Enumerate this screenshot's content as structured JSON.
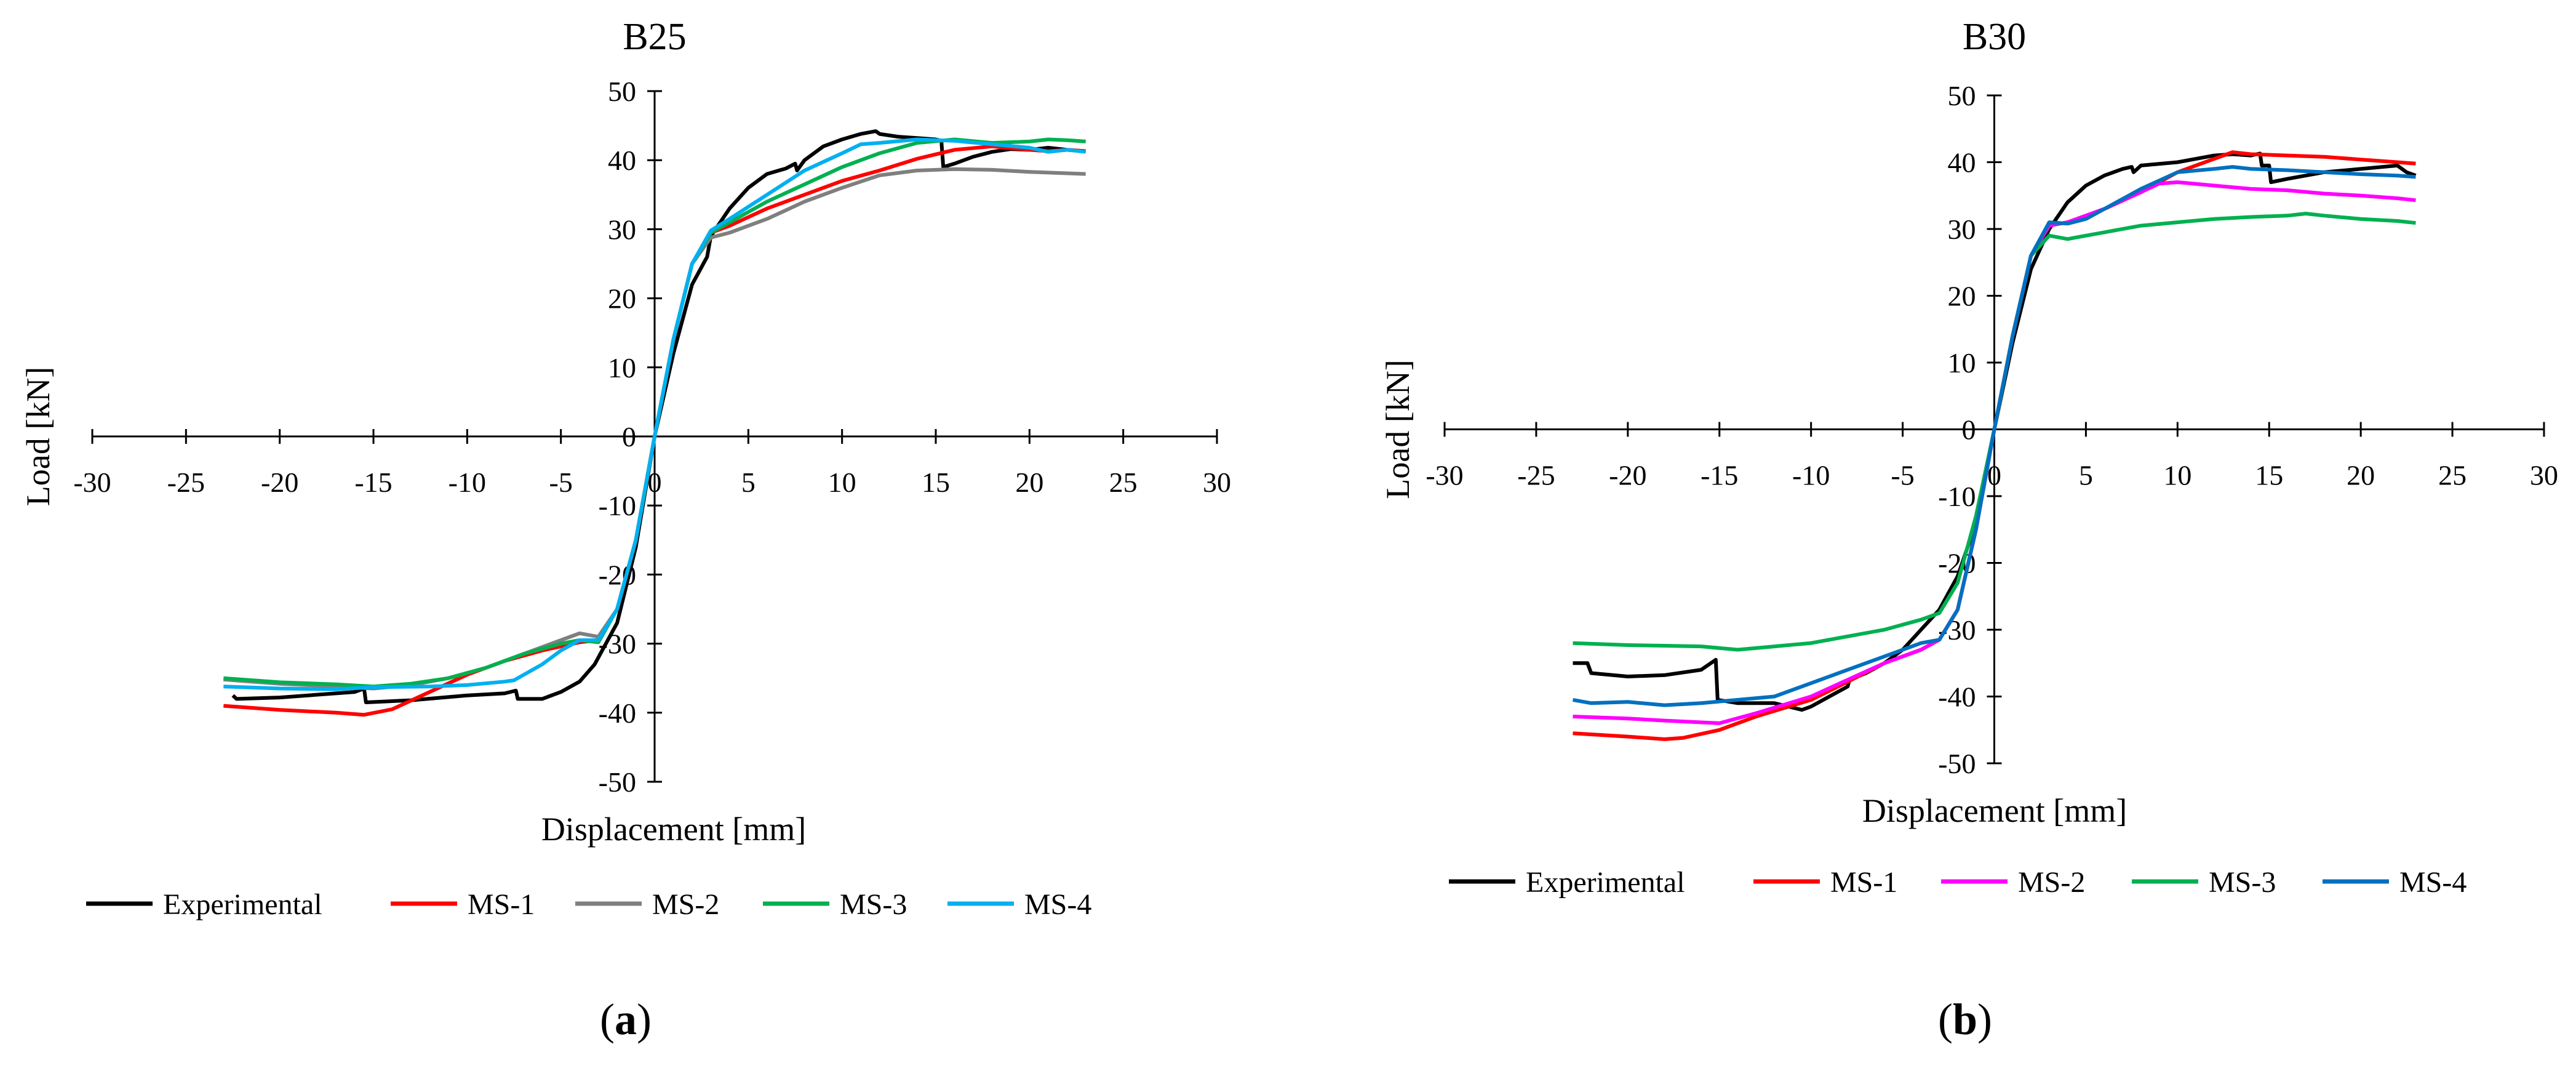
{
  "panels": [
    {
      "caption_letter": "a"
    },
    {
      "caption_letter": "b"
    }
  ],
  "chart_data": [
    {
      "type": "line",
      "title": "B25",
      "xlabel": "Displacement [mm]",
      "ylabel": "Load [kN]",
      "xlim": [
        -30,
        30
      ],
      "ylim": [
        -50,
        50
      ],
      "xticks": [
        -30,
        -25,
        -20,
        -15,
        -10,
        -5,
        0,
        5,
        10,
        15,
        20,
        25,
        30
      ],
      "yticks": [
        -50,
        -40,
        -30,
        -20,
        -10,
        0,
        10,
        20,
        30,
        40,
        50
      ],
      "legend_position": "bottom",
      "series": [
        {
          "name": "Experimental",
          "color": "#000000",
          "x": [
            -22.5,
            -22.3,
            -20,
            -16,
            -15.5,
            -15.4,
            -13,
            -10,
            -8,
            -7.4,
            -7.3,
            -6,
            -5,
            -4,
            -3.2,
            -2,
            -1,
            0,
            1,
            2,
            2.8,
            3,
            4,
            5,
            6,
            7,
            7.5,
            7.6,
            8,
            9,
            10,
            11,
            11.8,
            12,
            13,
            14,
            15,
            15.3,
            15.4,
            16,
            17,
            18,
            19,
            20,
            21,
            22,
            23
          ],
          "y": [
            -37.5,
            -38,
            -37.8,
            -37,
            -36.5,
            -38.5,
            -38.2,
            -37.5,
            -37.2,
            -36.8,
            -38,
            -38,
            -37,
            -35.5,
            -33,
            -27,
            -16,
            0,
            12,
            22,
            26,
            29,
            33,
            36,
            38,
            38.8,
            39.5,
            38.5,
            40,
            42,
            43,
            43.8,
            44.2,
            43.8,
            43.4,
            43.2,
            43,
            42.8,
            39,
            39.5,
            40.5,
            41.2,
            41.6,
            41.5,
            41.8,
            41.5,
            41.3
          ]
        },
        {
          "name": "MS-1",
          "color": "#ff0000",
          "x": [
            -23,
            -20,
            -17,
            -15.5,
            -14,
            -12,
            -10,
            -8,
            -6,
            -4,
            -3,
            -2,
            -1,
            0,
            1,
            2,
            3,
            4,
            6,
            8,
            10,
            12,
            14,
            16,
            18,
            20,
            21,
            22,
            23
          ],
          "y": [
            -39,
            -39.6,
            -40,
            -40.3,
            -39.5,
            -37,
            -34.5,
            -32.5,
            -31,
            -29.8,
            -29.5,
            -25,
            -15,
            0,
            14,
            25,
            29.5,
            30.5,
            33,
            35,
            37,
            38.5,
            40.2,
            41.5,
            42,
            41.5,
            41.3,
            41.5,
            41.3
          ]
        },
        {
          "name": "MS-2",
          "color": "#7f7f7f",
          "x": [
            -23,
            -20,
            -17,
            -15,
            -13,
            -11,
            -9,
            -7,
            -5,
            -4,
            -3,
            -2,
            -1,
            0,
            1,
            2,
            3,
            4,
            6,
            8,
            10,
            12,
            14,
            16,
            18,
            20,
            22,
            23
          ],
          "y": [
            -35.2,
            -35.8,
            -36.2,
            -36.5,
            -36,
            -35,
            -33.5,
            -31.5,
            -29.5,
            -28.5,
            -29,
            -25,
            -15,
            0,
            14,
            25,
            28.8,
            29.5,
            31.5,
            34,
            36,
            37.8,
            38.5,
            38.7,
            38.6,
            38.3,
            38.1,
            38
          ]
        },
        {
          "name": "MS-3",
          "color": "#00b050",
          "x": [
            -23,
            -20,
            -17,
            -15,
            -13,
            -11,
            -9,
            -7,
            -5,
            -4,
            -3,
            -2,
            -1,
            0,
            1,
            2,
            3,
            4,
            6,
            8,
            10,
            12,
            14,
            16,
            18,
            20,
            21,
            22,
            23
          ],
          "y": [
            -35,
            -35.6,
            -35.9,
            -36.2,
            -35.8,
            -35,
            -33.5,
            -31.5,
            -30,
            -29.5,
            -29.8,
            -25,
            -15,
            0,
            14,
            25,
            29.5,
            31,
            34,
            36.5,
            39,
            41,
            42.5,
            43,
            42.5,
            42.7,
            43,
            42.9,
            42.7
          ]
        },
        {
          "name": "MS-4",
          "color": "#00b0f0",
          "x": [
            -23,
            -20,
            -17,
            -15,
            -12,
            -10,
            -8,
            -7.5,
            -6,
            -5,
            -4,
            -3,
            -2,
            -1,
            0,
            1,
            2,
            3,
            4,
            6,
            8,
            10,
            11,
            12,
            14,
            16,
            18,
            20,
            21,
            22,
            23
          ],
          "y": [
            -36.2,
            -36.5,
            -36.6,
            -36.3,
            -36.2,
            -36,
            -35.5,
            -35.3,
            -33,
            -31,
            -29.5,
            -29.5,
            -25,
            -15,
            0,
            14,
            25,
            29.8,
            31.5,
            35,
            38.5,
            41,
            42.3,
            42.5,
            43,
            42.8,
            42.3,
            41.8,
            41.2,
            41.5,
            41.2
          ]
        }
      ]
    },
    {
      "type": "line",
      "title": "B30",
      "xlabel": "Displacement [mm]",
      "ylabel": "Load [kN]",
      "xlim": [
        -30,
        30
      ],
      "ylim": [
        -50,
        50
      ],
      "xticks": [
        -30,
        -25,
        -20,
        -15,
        -10,
        -5,
        0,
        5,
        10,
        15,
        20,
        25,
        30
      ],
      "yticks": [
        -50,
        -40,
        -30,
        -20,
        -10,
        0,
        10,
        20,
        30,
        40,
        50
      ],
      "legend_position": "bottom",
      "series": [
        {
          "name": "Experimental",
          "color": "#000000",
          "x": [
            -23,
            -22.2,
            -22,
            -20,
            -18,
            -16,
            -15.2,
            -15.1,
            -14,
            -12,
            -10.5,
            -10,
            -9,
            -8,
            -7.9,
            -7,
            -6,
            -5,
            -4,
            -3,
            -2,
            -1,
            0,
            1,
            2,
            3,
            4,
            5,
            6,
            7,
            7.5,
            7.6,
            8,
            10,
            12,
            13,
            14,
            14.5,
            14.6,
            15,
            15.1,
            16,
            18,
            20,
            22,
            22.5,
            23
          ],
          "y": [
            -35,
            -35,
            -36.5,
            -37,
            -36.8,
            -36,
            -34.5,
            -40.5,
            -41,
            -41,
            -42,
            -41.5,
            -40,
            -38.5,
            -37.5,
            -36.5,
            -35,
            -33,
            -30,
            -27,
            -22,
            -14,
            0,
            13,
            24,
            30,
            34,
            36.5,
            38,
            39,
            39.3,
            38.5,
            39.5,
            40,
            41,
            41.2,
            41,
            41.3,
            39.5,
            39.5,
            37,
            37.5,
            38.5,
            39,
            39.5,
            38.5,
            38
          ]
        },
        {
          "name": "MS-1",
          "color": "#ff0000",
          "x": [
            -23,
            -20,
            -18,
            -17,
            -15,
            -13,
            -10,
            -8,
            -6,
            -4,
            -3,
            -2,
            -1,
            0,
            1,
            2,
            3,
            4,
            5,
            6,
            8,
            10,
            12,
            13,
            14,
            16,
            18,
            20,
            22,
            23
          ],
          "y": [
            -45.5,
            -46,
            -46.4,
            -46.2,
            -45,
            -43,
            -40.5,
            -37.8,
            -35,
            -33,
            -31.5,
            -27,
            -15,
            0,
            14,
            26,
            30.5,
            31,
            32,
            33,
            35.5,
            38.5,
            40.5,
            41.5,
            41.2,
            41,
            40.8,
            40.4,
            40,
            39.8
          ]
        },
        {
          "name": "MS-2",
          "color": "#ff00ff",
          "x": [
            -23,
            -20,
            -18,
            -15,
            -13,
            -10,
            -8,
            -6,
            -4,
            -3,
            -2,
            -1,
            0,
            1,
            2,
            3,
            4,
            5,
            6,
            8,
            9,
            10,
            12,
            14,
            16,
            18,
            20,
            22,
            23
          ],
          "y": [
            -43,
            -43.3,
            -43.6,
            -44,
            -42.5,
            -40,
            -37.5,
            -35,
            -33,
            -31.5,
            -27,
            -15,
            0,
            14,
            26,
            30.5,
            31,
            32,
            33,
            35.5,
            36.8,
            37,
            36.5,
            36,
            35.8,
            35.3,
            35,
            34.6,
            34.3
          ]
        },
        {
          "name": "MS-3",
          "color": "#00b050",
          "x": [
            -23,
            -20,
            -18,
            -16,
            -14,
            -12,
            -10,
            -8,
            -6,
            -4,
            -3,
            -2,
            -1,
            0,
            1,
            2,
            3,
            4,
            5,
            6,
            8,
            10,
            12,
            14,
            16,
            17,
            18,
            20,
            22,
            23
          ],
          "y": [
            -32,
            -32.3,
            -32.4,
            -32.5,
            -33,
            -32.5,
            -32,
            -31,
            -30,
            -28.5,
            -27.5,
            -23,
            -13,
            0,
            14,
            26,
            29,
            28.5,
            29,
            29.5,
            30.5,
            31,
            31.5,
            31.8,
            32,
            32.3,
            32,
            31.5,
            31.2,
            30.9
          ]
        },
        {
          "name": "MS-4",
          "color": "#0070c0",
          "x": [
            -23,
            -22,
            -20,
            -18,
            -16,
            -14,
            -12,
            -10,
            -8,
            -6,
            -4,
            -3,
            -2,
            -1,
            0,
            1,
            2,
            3,
            4,
            5,
            6,
            8,
            10,
            12,
            13,
            14,
            16,
            18,
            20,
            22,
            23
          ],
          "y": [
            -40.5,
            -41,
            -40.8,
            -41.3,
            -41,
            -40.5,
            -40,
            -38,
            -36,
            -34,
            -32,
            -31.5,
            -27,
            -15,
            0,
            14,
            26,
            31,
            30.8,
            31.5,
            33,
            36,
            38.5,
            39,
            39.3,
            39,
            38.8,
            38.5,
            38.2,
            38,
            37.8
          ]
        }
      ]
    }
  ]
}
